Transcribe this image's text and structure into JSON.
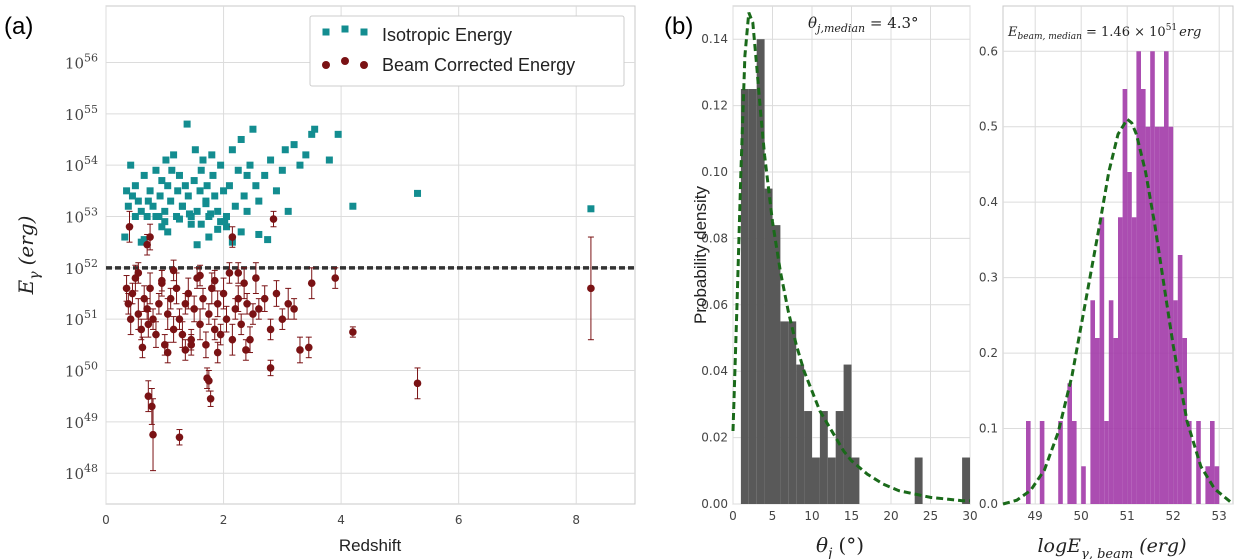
{
  "panel_labels": {
    "a": "(a)",
    "b": "(b)"
  },
  "colors": {
    "teal": "#138d90",
    "maroon": "#7a1214",
    "gray_bar": "#595959",
    "purple_bar": "#a23aa8",
    "fit_line": "#1a6a1a",
    "hline": "#333333"
  },
  "chart_data": [
    {
      "type": "scatter",
      "panel": "(a)",
      "xlabel": "Redshift",
      "ylabel": "E_γ (erg)",
      "ylabel_main": "E",
      "ylabel_sub": "γ",
      "ylabel_unit": "(erg)",
      "x_ticks": [
        "0",
        "2",
        "4",
        "6",
        "8"
      ],
      "y_tick_base": "10",
      "y_tick_exps": [
        "48",
        "49",
        "50",
        "51",
        "52",
        "53",
        "54",
        "55",
        "56"
      ],
      "xlim": [
        0,
        9
      ],
      "ylim_log10": [
        47.4,
        57.1
      ],
      "log_y": true,
      "grid": true,
      "legend_position": "top-right",
      "reference_line_log10": 52.0,
      "series": [
        {
          "name": "Isotropic Energy",
          "marker": "square",
          "x": [
            0.35,
            0.38,
            0.42,
            0.45,
            0.5,
            0.55,
            0.6,
            0.65,
            0.7,
            0.72,
            0.75,
            0.8,
            0.85,
            0.9,
            0.92,
            0.95,
            1.0,
            1.02,
            1.05,
            1.1,
            1.12,
            1.15,
            1.2,
            1.22,
            1.25,
            1.3,
            1.35,
            1.38,
            1.4,
            1.45,
            1.5,
            1.52,
            1.55,
            1.6,
            1.62,
            1.65,
            1.7,
            1.72,
            1.75,
            1.8,
            1.82,
            1.85,
            1.9,
            1.95,
            2.0,
            2.05,
            2.1,
            2.15,
            2.2,
            2.25,
            2.3,
            2.35,
            2.4,
            2.45,
            2.5,
            2.55,
            2.6,
            2.7,
            2.8,
            2.9,
            3.0,
            3.05,
            3.1,
            3.2,
            3.3,
            3.4,
            3.5,
            3.55,
            3.8,
            3.95,
            4.2,
            5.3,
            8.25,
            0.32,
            0.6,
            0.65,
            0.95,
            1.05,
            1.55,
            1.75,
            2.02,
            2.15,
            1.9,
            1.45,
            2.6,
            2.75,
            0.85,
            1.25,
            1.62,
            1.78,
            2.3,
            2.4,
            0.5,
            1.0,
            1.3,
            1.42,
            1.7,
            1.95,
            2.05
          ],
          "y_log10": [
            53.5,
            53.2,
            54.0,
            53.4,
            53.6,
            53.3,
            53.1,
            53.8,
            53.0,
            53.3,
            53.5,
            53.2,
            53.9,
            53.0,
            53.4,
            53.7,
            53.1,
            54.1,
            53.6,
            53.3,
            53.9,
            54.2,
            53.0,
            53.5,
            53.8,
            53.2,
            53.6,
            54.8,
            53.4,
            53.0,
            53.7,
            54.3,
            53.1,
            53.5,
            53.9,
            54.1,
            53.3,
            53.6,
            53.0,
            54.2,
            53.8,
            53.4,
            53.1,
            54.0,
            53.5,
            53.0,
            53.6,
            54.3,
            53.2,
            53.9,
            54.5,
            53.4,
            53.8,
            54.0,
            54.7,
            53.6,
            53.3,
            53.8,
            54.1,
            53.5,
            53.9,
            54.3,
            53.1,
            54.4,
            54.0,
            54.2,
            54.6,
            54.7,
            54.1,
            54.6,
            53.2,
            53.45,
            53.15,
            52.6,
            52.5,
            52.55,
            52.8,
            52.7,
            52.45,
            52.6,
            52.9,
            52.5,
            52.75,
            52.85,
            52.65,
            52.55,
            53.0,
            52.95,
            52.85,
            53.05,
            52.7,
            53.1,
            53.0,
            52.9,
            53.2,
            53.05,
            53.25,
            52.9,
            52.8
          ]
        },
        {
          "name": "Beam Corrected Energy",
          "marker": "circle",
          "x": [
            0.35,
            0.38,
            0.42,
            0.45,
            0.5,
            0.55,
            0.6,
            0.65,
            0.7,
            0.72,
            0.75,
            0.8,
            0.85,
            0.9,
            0.95,
            1.0,
            1.05,
            1.1,
            1.15,
            1.2,
            1.25,
            1.3,
            1.35,
            1.4,
            1.45,
            1.5,
            1.55,
            1.6,
            1.65,
            1.7,
            1.75,
            1.8,
            1.85,
            1.9,
            1.95,
            2.0,
            2.05,
            2.1,
            2.15,
            2.2,
            2.25,
            2.3,
            2.35,
            2.4,
            2.45,
            2.5,
            2.55,
            2.6,
            2.7,
            2.8,
            2.9,
            3.0,
            3.1,
            3.2,
            3.3,
            3.5,
            3.9,
            4.2,
            5.3,
            8.25,
            0.4,
            0.7,
            0.75,
            0.72,
            0.78,
            0.8,
            1.25,
            1.72,
            1.75,
            1.78,
            2.15,
            2.85,
            0.62,
            1.05,
            1.35,
            1.45,
            1.9,
            2.38,
            0.55,
            0.95,
            1.15,
            1.6,
            1.85,
            2.25,
            2.8,
            3.45
          ],
          "y_log10": [
            51.6,
            51.3,
            51.0,
            51.5,
            51.8,
            51.1,
            50.8,
            51.4,
            51.2,
            50.9,
            51.6,
            51.0,
            50.7,
            51.3,
            51.7,
            50.5,
            51.1,
            51.4,
            50.8,
            51.6,
            51.0,
            50.7,
            51.3,
            51.5,
            50.6,
            51.2,
            51.8,
            50.9,
            51.4,
            50.5,
            51.1,
            51.6,
            50.8,
            51.3,
            50.7,
            51.5,
            51.0,
            51.9,
            50.6,
            51.2,
            51.4,
            50.9,
            51.7,
            51.3,
            50.6,
            51.1,
            51.8,
            51.2,
            51.4,
            50.8,
            51.5,
            51.0,
            51.3,
            51.2,
            50.4,
            51.7,
            51.8,
            50.75,
            49.75,
            51.6,
            52.8,
            52.45,
            52.6,
            49.5,
            49.3,
            48.75,
            48.7,
            49.85,
            49.8,
            49.45,
            52.6,
            52.95,
            50.45,
            50.35,
            50.4,
            50.5,
            50.35,
            50.4,
            51.9,
            51.75,
            51.95,
            51.85,
            51.75,
            51.9,
            50.05,
            50.45
          ],
          "y_err_log10": [
            0.25,
            0.2,
            0.3,
            0.2,
            0.25,
            0.3,
            0.2,
            0.25,
            0.2,
            0.25,
            0.3,
            0.2,
            0.25,
            0.2,
            0.25,
            0.2,
            0.3,
            0.2,
            0.25,
            0.3,
            0.2,
            0.25,
            0.2,
            0.3,
            0.2,
            0.25,
            0.2,
            0.3,
            0.2,
            0.25,
            0.2,
            0.3,
            0.2,
            0.25,
            0.2,
            0.3,
            0.25,
            0.2,
            0.3,
            0.2,
            0.25,
            0.2,
            0.3,
            0.2,
            0.25,
            0.2,
            0.3,
            0.2,
            0.25,
            0.2,
            0.25,
            0.2,
            0.3,
            0.2,
            0.25,
            0.3,
            0.2,
            0.1,
            0.3,
            1.0,
            0.3,
            0.2,
            0.25,
            0.3,
            0.35,
            0.7,
            0.15,
            0.2,
            0.2,
            0.15,
            0.2,
            0.15,
            0.2,
            0.2,
            0.2,
            0.2,
            0.2,
            0.2,
            0.2,
            0.2,
            0.2,
            0.2,
            0.2,
            0.2,
            0.15,
            0.2
          ]
        }
      ]
    },
    {
      "type": "bar",
      "panel": "(b)",
      "subtype": "histogram",
      "xlabel_main": "θ",
      "xlabel_sub": "j",
      "xlabel_unit": "(°)",
      "ylabel": "Probability density",
      "annotation_main": "θ",
      "annotation_sub": "j,median",
      "annotation_value": " = 4.3°",
      "xlim": [
        0,
        30
      ],
      "ylim": [
        0,
        0.15
      ],
      "x_ticks": [
        "0",
        "5",
        "10",
        "15",
        "20",
        "25",
        "30"
      ],
      "y_ticks": [
        "0.00",
        "0.02",
        "0.04",
        "0.06",
        "0.08",
        "0.10",
        "0.12",
        "0.14"
      ],
      "bin_width": 1.0,
      "bin_starts": [
        1,
        2,
        3,
        4,
        5,
        6,
        7,
        8,
        9,
        10,
        11,
        12,
        13,
        14,
        15,
        16,
        17,
        18,
        19,
        20,
        21,
        22,
        23,
        24,
        25,
        26,
        27,
        28,
        29
      ],
      "values": [
        0.125,
        0.125,
        0.14,
        0.095,
        0.084,
        0.055,
        0.055,
        0.042,
        0.028,
        0.014,
        0.028,
        0.014,
        0.028,
        0.042,
        0.014,
        0,
        0,
        0,
        0,
        0,
        0,
        0,
        0.014,
        0,
        0,
        0,
        0,
        0,
        0.014
      ],
      "fit_curve": {
        "style": "dashed",
        "x": [
          0,
          0.5,
          1,
          1.5,
          2,
          2.5,
          3,
          3.5,
          4,
          5,
          6,
          7,
          8,
          9,
          10,
          11,
          12,
          13,
          14,
          15,
          17,
          19,
          21,
          23,
          25,
          27,
          29,
          30
        ],
        "y": [
          0.022,
          0.06,
          0.1,
          0.135,
          0.148,
          0.145,
          0.132,
          0.118,
          0.105,
          0.085,
          0.07,
          0.058,
          0.048,
          0.04,
          0.034,
          0.028,
          0.024,
          0.02,
          0.016,
          0.013,
          0.009,
          0.006,
          0.004,
          0.003,
          0.002,
          0.0015,
          0.001,
          0.001
        ]
      }
    },
    {
      "type": "bar",
      "panel": "(b)",
      "subtype": "histogram",
      "xlabel_main": "logE",
      "xlabel_sub": "γ, beam",
      "xlabel_unit": "(erg)",
      "annotation_main": "E",
      "annotation_sub": "beam, median",
      "annotation_value": " = 1.46 × 10",
      "annotation_exp": "51",
      "annotation_unit": "erg",
      "xlim": [
        48.3,
        53.3
      ],
      "ylim": [
        0,
        0.66
      ],
      "x_ticks": [
        "49",
        "50",
        "51",
        "52",
        "53"
      ],
      "x_tick_values": [
        49,
        50,
        51,
        52,
        53
      ],
      "y_ticks": [
        "0.0",
        "0.1",
        "0.2",
        "0.3",
        "0.4",
        "0.5",
        "0.6"
      ],
      "bin_width": 0.1,
      "bin_starts": [
        48.8,
        48.9,
        49.0,
        49.1,
        49.2,
        49.3,
        49.4,
        49.5,
        49.6,
        49.7,
        49.8,
        49.9,
        50.0,
        50.1,
        50.2,
        50.3,
        50.4,
        50.5,
        50.6,
        50.7,
        50.8,
        50.9,
        51.0,
        51.1,
        51.2,
        51.3,
        51.4,
        51.5,
        51.6,
        51.7,
        51.8,
        51.9,
        52.0,
        52.1,
        52.2,
        52.3,
        52.4,
        52.5,
        52.6,
        52.7,
        52.8,
        52.9
      ],
      "values": [
        0.11,
        0,
        0,
        0.11,
        0,
        0,
        0,
        0.11,
        0,
        0.16,
        0.11,
        0,
        0.05,
        0,
        0.27,
        0.22,
        0.38,
        0.11,
        0.27,
        0.22,
        0.38,
        0.55,
        0.44,
        0.38,
        0.6,
        0.55,
        0.5,
        0.6,
        0.5,
        0.5,
        0.6,
        0.5,
        0.27,
        0.33,
        0.22,
        0.11,
        0,
        0.11,
        0,
        0.05,
        0.11,
        0.05
      ],
      "fit_curve": {
        "style": "dashed",
        "x": [
          48.3,
          48.6,
          48.9,
          49.2,
          49.5,
          49.8,
          50.1,
          50.4,
          50.6,
          50.8,
          51.0,
          51.1,
          51.2,
          51.4,
          51.6,
          51.8,
          52.0,
          52.3,
          52.6,
          52.9,
          53.2,
          53.3
        ],
        "y": [
          0.0,
          0.005,
          0.018,
          0.045,
          0.095,
          0.17,
          0.27,
          0.37,
          0.44,
          0.49,
          0.51,
          0.505,
          0.49,
          0.44,
          0.37,
          0.29,
          0.21,
          0.11,
          0.05,
          0.02,
          0.005,
          0.0
        ]
      }
    }
  ]
}
